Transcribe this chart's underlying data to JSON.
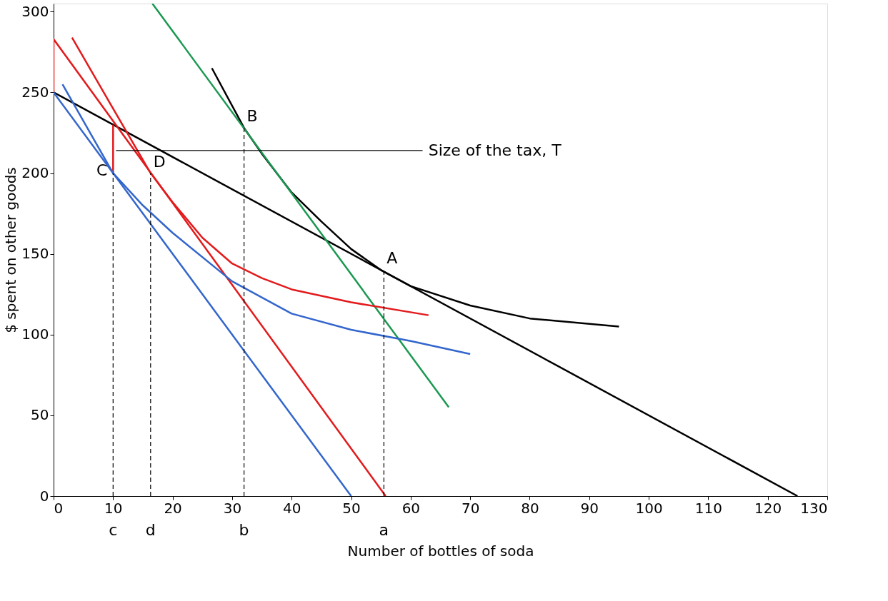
{
  "chart_data": {
    "type": "line",
    "xlabel": "Number of bottles of soda",
    "ylabel": "$ spent on other goods",
    "xlim": [
      0,
      130
    ],
    "ylim": [
      0,
      305
    ],
    "xticks": [
      0,
      10,
      20,
      30,
      40,
      50,
      60,
      70,
      80,
      90,
      100,
      110,
      120,
      130
    ],
    "yticks": [
      0,
      50,
      100,
      150,
      200,
      250,
      300
    ],
    "grid": false,
    "marker": "none",
    "series": [
      {
        "color": "#000000",
        "line_style": "solid",
        "x": [
          0,
          125
        ],
        "values": [
          250,
          0
        ]
      },
      {
        "color": "#000000",
        "line_style": "solid",
        "x": [
          26.6,
          32,
          35,
          40,
          45,
          50,
          55,
          60,
          70,
          80,
          95
        ],
        "values": [
          265,
          228,
          212,
          188,
          170,
          153,
          140,
          130,
          118,
          110,
          105
        ]
      },
      {
        "color": "#1a9850",
        "line_style": "solid",
        "x": [
          16.6,
          66.4
        ],
        "values": [
          305,
          55
        ]
      },
      {
        "color": "#e31a1c",
        "line_style": "solid",
        "x": [
          0,
          0,
          55.8
        ],
        "values": [
          250,
          283,
          0
        ]
      },
      {
        "color": "#e31a1c",
        "line_style": "solid",
        "x": [
          3.1,
          10,
          16.3,
          20,
          25,
          30,
          35,
          40,
          50,
          63
        ],
        "values": [
          284,
          240,
          200,
          182,
          160,
          144,
          135,
          128,
          120,
          112
        ]
      },
      {
        "color": "#e31a1c",
        "line_style": "solid",
        "x": [
          10,
          10
        ],
        "values": [
          200,
          230
        ]
      },
      {
        "color": "#3366cc",
        "line_style": "solid",
        "x": [
          0,
          50
        ],
        "values": [
          250,
          0
        ]
      },
      {
        "color": "#3366cc",
        "line_style": "solid",
        "x": [
          1.5,
          10,
          15,
          20,
          30,
          40,
          50,
          60,
          70
        ],
        "values": [
          255,
          200,
          180,
          163,
          133,
          113,
          103,
          96,
          88
        ]
      },
      {
        "color": "#000000",
        "line_style": "dashed",
        "x": [
          10,
          10
        ],
        "values": [
          0,
          200
        ]
      },
      {
        "color": "#000000",
        "line_style": "dashed",
        "x": [
          16.3,
          16.3
        ],
        "values": [
          0,
          200
        ]
      },
      {
        "color": "#000000",
        "line_style": "dashed",
        "x": [
          32,
          32
        ],
        "values": [
          0,
          228
        ]
      },
      {
        "color": "#000000",
        "line_style": "dashed",
        "x": [
          55.5,
          55.5
        ],
        "values": [
          0,
          140
        ]
      },
      {
        "color": "#000000",
        "line_style": "solid",
        "x": [
          10.5,
          62
        ],
        "values": [
          214,
          214
        ]
      }
    ],
    "annotations": [
      {
        "text": "Size of the tax, T",
        "x": 62.5,
        "y": 214
      },
      {
        "text": "A",
        "x": 55.5,
        "y": 140
      },
      {
        "text": "B",
        "x": 32,
        "y": 228
      },
      {
        "text": "C",
        "x": 10,
        "y": 200
      },
      {
        "text": "D",
        "x": 16.3,
        "y": 200
      },
      {
        "text": "c",
        "x": 10,
        "y": 0
      },
      {
        "text": "d",
        "x": 16.3,
        "y": 0
      },
      {
        "text": "b",
        "x": 32,
        "y": 0
      },
      {
        "text": "a",
        "x": 55.5,
        "y": 0
      }
    ]
  }
}
